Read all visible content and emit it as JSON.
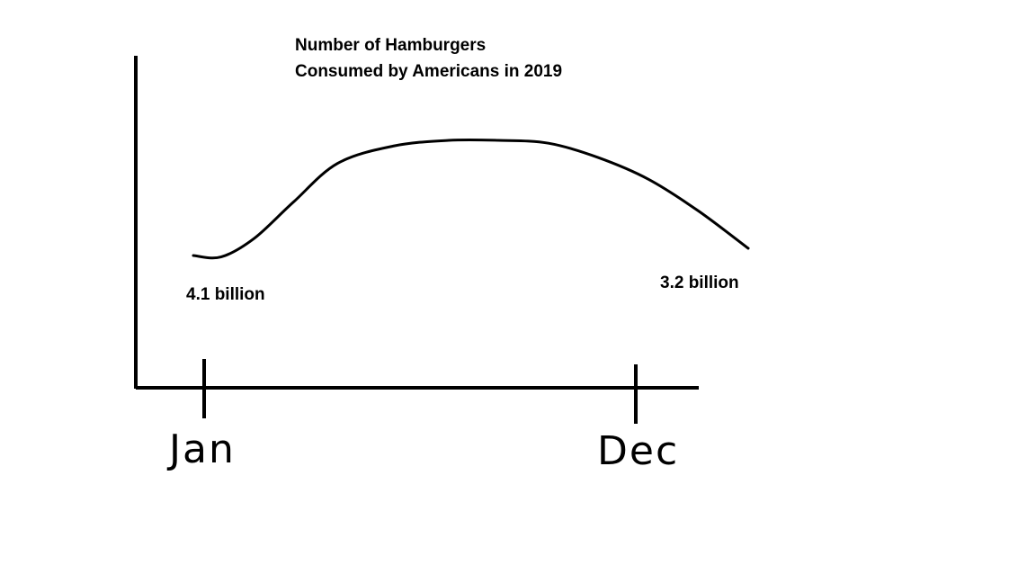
{
  "chart_data": {
    "type": "line",
    "title_lines": [
      "Number of Hamburgers",
      "Consumed by Americans in 2019"
    ],
    "x_ticks": [
      "Jan",
      "Dec"
    ],
    "series": [
      {
        "values": [
          [
            0.0,
            0.1
          ],
          [
            0.05,
            0.09
          ],
          [
            0.11,
            0.22
          ],
          [
            0.18,
            0.47
          ],
          [
            0.26,
            0.74
          ],
          [
            0.36,
            0.86
          ],
          [
            0.46,
            0.9
          ],
          [
            0.55,
            0.9
          ],
          [
            0.64,
            0.88
          ],
          [
            0.73,
            0.78
          ],
          [
            0.82,
            0.63
          ],
          [
            0.91,
            0.41
          ],
          [
            1.0,
            0.15
          ]
        ]
      }
    ],
    "point_labels": [
      {
        "position": "start",
        "text": "4.1 billion"
      },
      {
        "position": "end",
        "text": "3.2 billion"
      }
    ],
    "grid": false,
    "line_color": "#000000"
  }
}
